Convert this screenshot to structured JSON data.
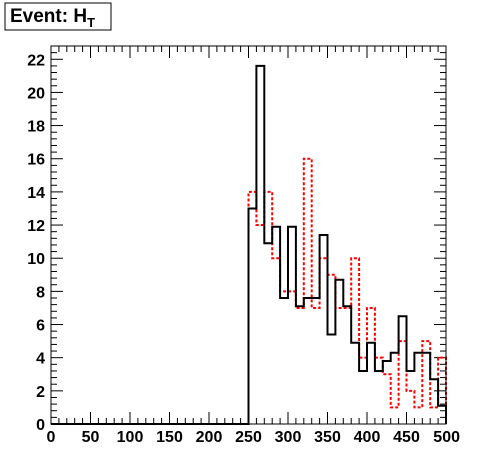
{
  "chart_data": {
    "type": "histogram",
    "title": {
      "prefix": "Event: H",
      "subscript": "T"
    },
    "xlabel": "",
    "ylabel": "",
    "xlim": [
      0,
      500
    ],
    "ylim": [
      0,
      22.8
    ],
    "x_ticks": [
      0,
      50,
      100,
      150,
      200,
      250,
      300,
      350,
      400,
      450,
      500
    ],
    "y_ticks": [
      0,
      2,
      4,
      6,
      8,
      10,
      12,
      14,
      16,
      18,
      20,
      22
    ],
    "x_tick_labels": [
      "0",
      "50",
      "100",
      "150",
      "200",
      "250",
      "300",
      "350",
      "400",
      "450",
      "500"
    ],
    "y_tick_labels": [
      "0",
      "2",
      "4",
      "6",
      "8",
      "10",
      "12",
      "14",
      "16",
      "18",
      "20",
      "22"
    ],
    "bin_edges": [
      0,
      10,
      20,
      30,
      40,
      50,
      60,
      70,
      80,
      90,
      100,
      110,
      120,
      130,
      140,
      150,
      160,
      170,
      180,
      190,
      200,
      210,
      220,
      230,
      240,
      250,
      260,
      270,
      280,
      290,
      300,
      310,
      320,
      330,
      340,
      350,
      360,
      370,
      380,
      390,
      400,
      410,
      420,
      430,
      440,
      450,
      460,
      470,
      480,
      490,
      500
    ],
    "grid": false,
    "legend": "none",
    "series": [
      {
        "color": "#000000",
        "style": "solid",
        "values": [
          0,
          0,
          0,
          0,
          0,
          0,
          0,
          0,
          0,
          0,
          0,
          0,
          0,
          0,
          0,
          0,
          0,
          0,
          0,
          0,
          0,
          0,
          0,
          0,
          0,
          13,
          21.6,
          10.9,
          11.9,
          7.6,
          11.9,
          7.1,
          7.6,
          7.6,
          11.4,
          5.4,
          8.7,
          7.1,
          4.9,
          3.2,
          4.9,
          3.2,
          3.8,
          4.3,
          6.5,
          3.2,
          4.3,
          4.3,
          2.7,
          1.1
        ]
      },
      {
        "color": "#ff0000",
        "style": "dashed",
        "values": [
          0,
          0,
          0,
          0,
          0,
          0,
          0,
          0,
          0,
          0,
          0,
          0,
          0,
          0,
          0,
          0,
          0,
          0,
          0,
          0,
          0,
          0,
          0,
          0,
          0,
          14,
          12,
          14,
          10,
          8,
          8,
          7,
          16,
          7,
          10,
          9,
          7,
          7,
          10,
          4,
          7,
          4,
          3,
          1,
          5,
          2,
          1,
          5,
          1,
          4
        ]
      }
    ]
  }
}
